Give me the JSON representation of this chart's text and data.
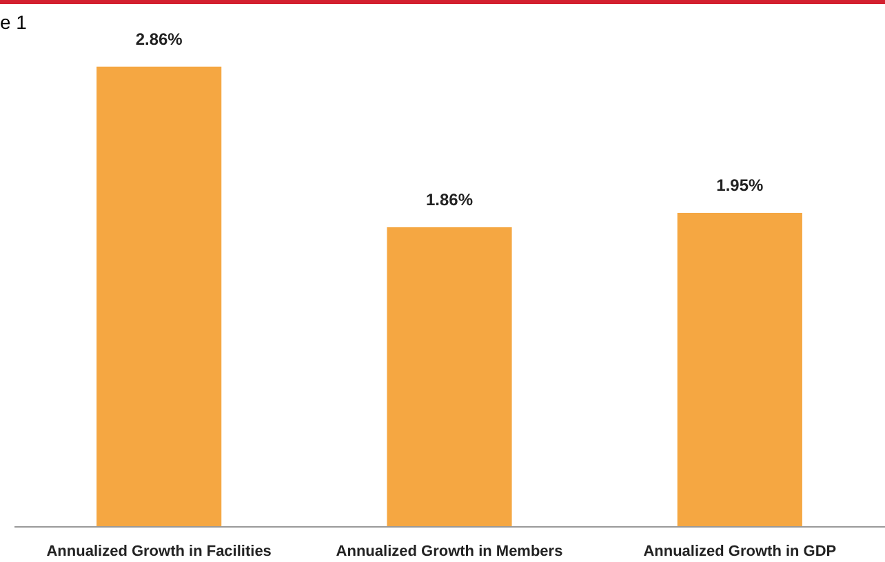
{
  "chart_data": {
    "type": "bar",
    "title": "e 1",
    "categories": [
      "Annualized Growth in Facilities",
      "Annualized Growth in Members",
      "Annualized Growth in GDP"
    ],
    "values": [
      2.86,
      1.86,
      1.95
    ],
    "value_labels": [
      "2.86%",
      "1.86%",
      "1.95%"
    ],
    "color": "#f5a742"
  }
}
